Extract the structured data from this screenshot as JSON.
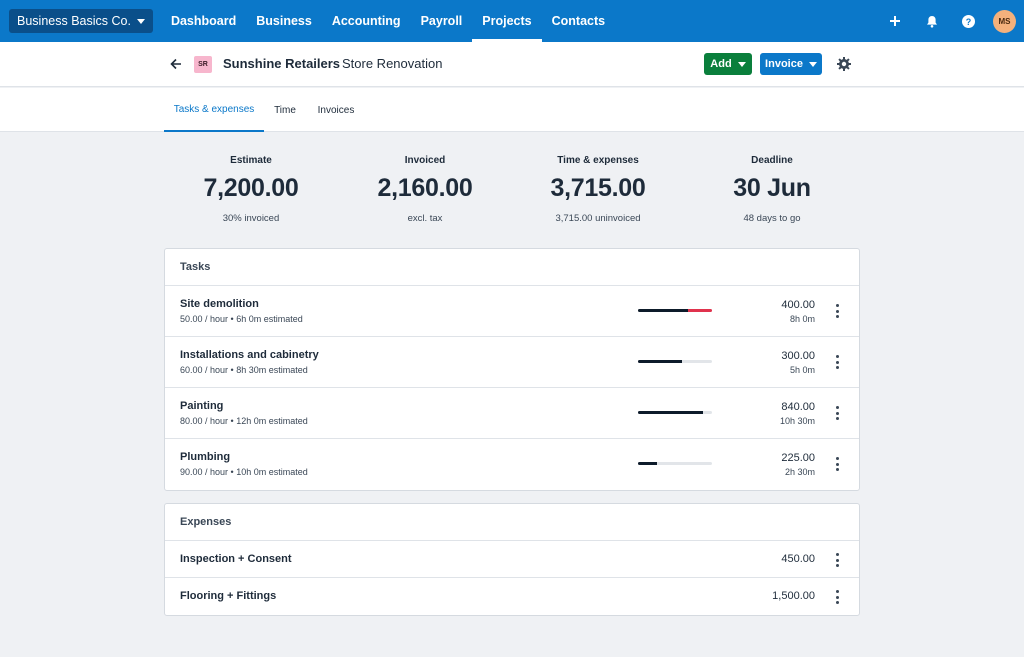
{
  "nav": {
    "org": "Business Basics Co.",
    "links": [
      "Dashboard",
      "Business",
      "Accounting",
      "Payroll",
      "Projects",
      "Contacts"
    ],
    "active": "Projects",
    "icons": [
      "plus-icon",
      "bell-icon",
      "help-icon"
    ],
    "avatar": "MS"
  },
  "header": {
    "badge": "SR",
    "client": "Sunshine Retailers",
    "project": "Store Renovation",
    "add_label": "Add",
    "invoice_label": "Invoice"
  },
  "tabs": [
    "Tasks & expenses",
    "Time",
    "Invoices"
  ],
  "summary": [
    {
      "label": "Estimate",
      "value": "7,200.00",
      "sub": "30% invoiced"
    },
    {
      "label": "Invoiced",
      "value": "2,160.00",
      "sub": "excl. tax"
    },
    {
      "label": "Time & expenses",
      "value": "3,715.00",
      "sub": "3,715.00 uninvoiced"
    },
    {
      "label": "Deadline",
      "value": "30 Jun",
      "sub": "48 days to go"
    }
  ],
  "tasks": {
    "title": "Tasks",
    "rows": [
      {
        "name": "Site demolition",
        "meta": "50.00 / hour • 6h 0m estimated",
        "amount": "400.00",
        "hours": "8h 0m",
        "progress": 1.0,
        "over": 0.33
      },
      {
        "name": "Installations and cabinetry",
        "meta": "60.00 / hour • 8h 30m estimated",
        "amount": "300.00",
        "hours": "5h 0m",
        "progress": 0.59,
        "over": 0
      },
      {
        "name": "Painting",
        "meta": "80.00 / hour • 12h 0m estimated",
        "amount": "840.00",
        "hours": "10h 30m",
        "progress": 0.875,
        "over": 0
      },
      {
        "name": "Plumbing",
        "meta": "90.00 / hour • 10h 0m estimated",
        "amount": "225.00",
        "hours": "2h 30m",
        "progress": 0.25,
        "over": 0
      }
    ]
  },
  "expenses": {
    "title": "Expenses",
    "rows": [
      {
        "name": "Inspection + Consent",
        "amount": "450.00"
      },
      {
        "name": "Flooring + Fittings",
        "amount": "1,500.00"
      }
    ]
  }
}
